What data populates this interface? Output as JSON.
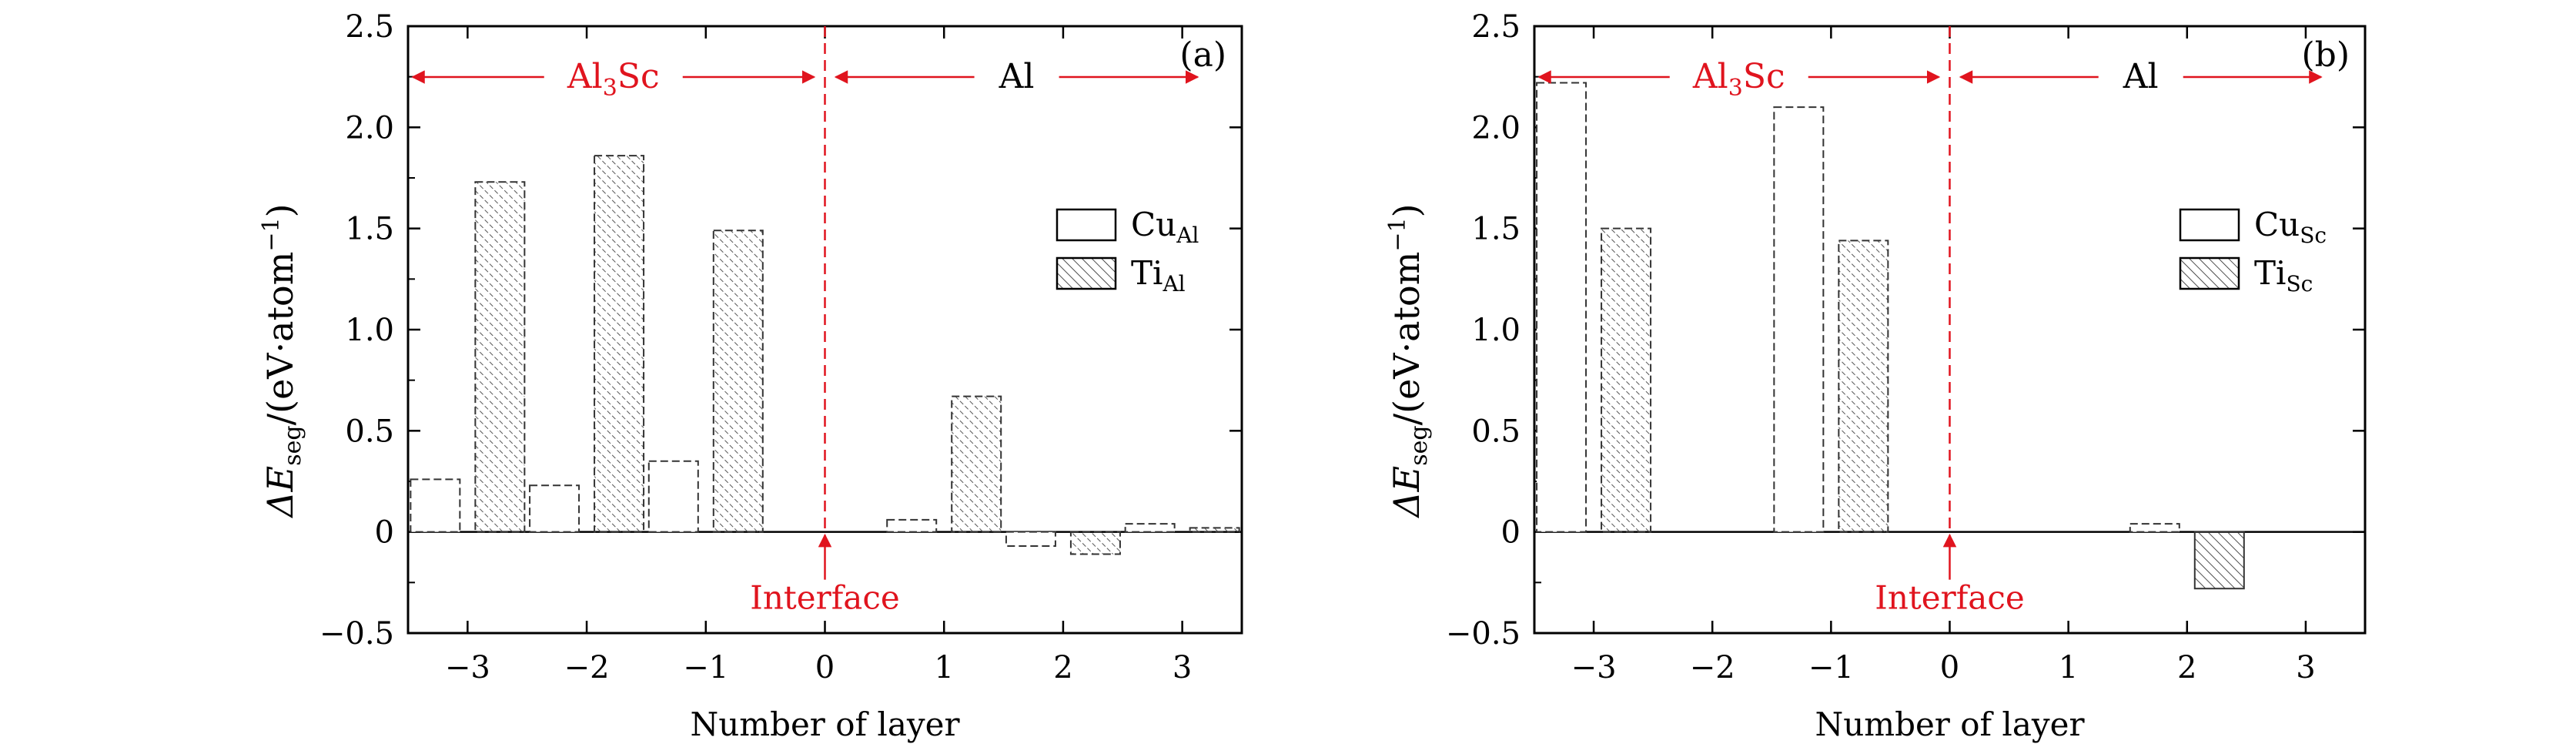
{
  "chart_data": [
    {
      "type": "bar",
      "panel_label": "(a)",
      "xlabel": "Number of layer",
      "ylabel": "ΔE_seg/(eV·atom⁻¹)",
      "ylabel_main": "ΔE",
      "ylabel_sub": "seg",
      "ylabel_rest": "/(eV·atom",
      "ylabel_sup": "−1",
      "ylabel_close": ")",
      "ylim": [
        -0.5,
        2.5
      ],
      "xlim": [
        -3.5,
        3.5
      ],
      "yticks": [
        -0.5,
        0,
        0.5,
        1.0,
        1.5,
        2.0,
        2.5
      ],
      "ytick_labels": [
        "−0.5",
        "0",
        "0.5",
        "1.0",
        "1.5",
        "2.0",
        "2.5"
      ],
      "xticks": [
        -3,
        -2,
        -1,
        0,
        1,
        2,
        3
      ],
      "xtick_labels": [
        "−3",
        "−2",
        "−1",
        "0",
        "1",
        "2",
        "3"
      ],
      "series": [
        {
          "name": "Cu_Al",
          "legend_main": "Cu",
          "legend_sub": "Al",
          "style": "open",
          "x": [
            -3,
            -2,
            -1,
            1,
            2,
            3
          ],
          "values": [
            0.26,
            0.23,
            0.35,
            0.06,
            -0.07,
            0.04
          ]
        },
        {
          "name": "Ti_Al",
          "legend_main": "Ti",
          "legend_sub": "Al",
          "style": "hatched",
          "x": [
            -3,
            -2,
            -1,
            1,
            2,
            3
          ],
          "values": [
            1.73,
            1.86,
            1.49,
            0.67,
            -0.11,
            0.02
          ]
        }
      ],
      "annotations": {
        "interface": "Interface",
        "left_region_main": "Al",
        "left_region_sub": "3",
        "left_region_rest": "Sc",
        "right_region": "Al"
      },
      "grid": false,
      "legend_placement": "right"
    },
    {
      "type": "bar",
      "panel_label": "(b)",
      "xlabel": "Number of layer",
      "ylabel": "ΔE_seg/(eV·atom⁻¹)",
      "ylabel_main": "ΔE",
      "ylabel_sub": "seg",
      "ylabel_rest": "/(eV·atom",
      "ylabel_sup": "−1",
      "ylabel_close": ")",
      "ylim": [
        -0.5,
        2.5
      ],
      "xlim": [
        -3.5,
        3.5
      ],
      "yticks": [
        -0.5,
        0,
        0.5,
        1.0,
        1.5,
        2.0,
        2.5
      ],
      "ytick_labels": [
        "−0.5",
        "0",
        "0.5",
        "1.0",
        "1.5",
        "2.0",
        "2.5"
      ],
      "xticks": [
        -3,
        -2,
        -1,
        0,
        1,
        2,
        3
      ],
      "xtick_labels": [
        "−3",
        "−2",
        "−1",
        "0",
        "1",
        "2",
        "3"
      ],
      "series": [
        {
          "name": "Cu_Sc",
          "legend_main": "Cu",
          "legend_sub": "Sc",
          "style": "open",
          "x": [
            -3,
            -1,
            2
          ],
          "values": [
            2.22,
            2.1,
            0.04
          ]
        },
        {
          "name": "Ti_Sc",
          "legend_main": "Ti",
          "legend_sub": "Sc",
          "style": "hatched",
          "x": [
            -3,
            -1,
            2
          ],
          "values": [
            1.5,
            1.44,
            -0.28
          ]
        }
      ],
      "annotations": {
        "interface": "Interface",
        "left_region_main": "Al",
        "left_region_sub": "3",
        "left_region_rest": "Sc",
        "right_region": "Al"
      },
      "grid": false,
      "legend_placement": "right"
    }
  ],
  "colors": {
    "annotation_red": "#e0141e",
    "axis": "#000000",
    "bar_dash": "#444444"
  }
}
